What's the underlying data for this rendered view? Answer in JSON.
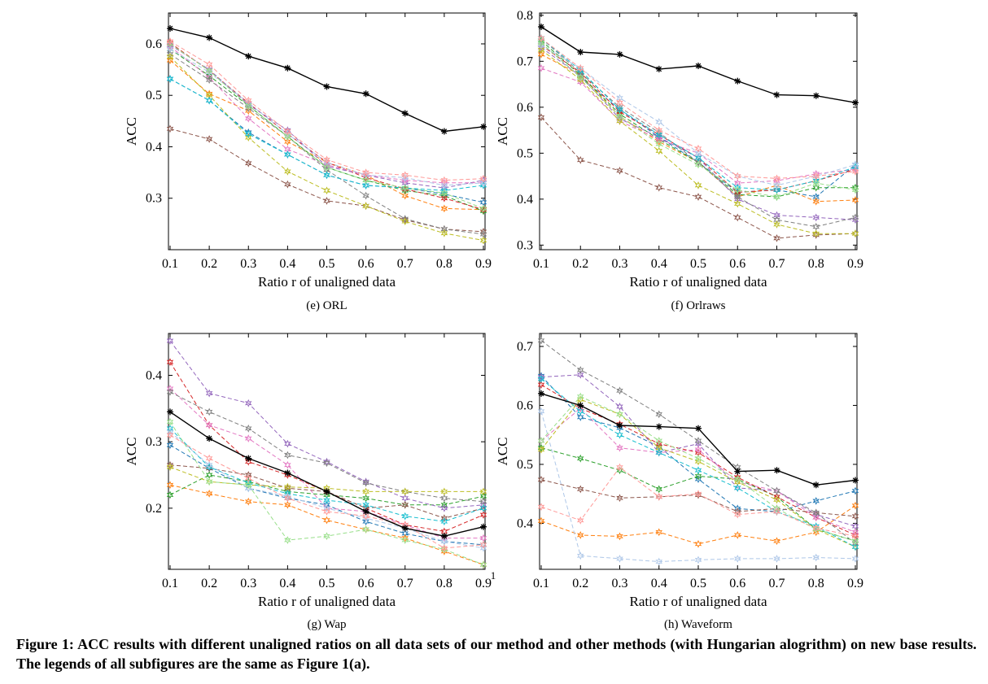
{
  "caption": "Figure 1: ACC results with different unaligned ratios on all data sets of our method and other methods (with Hungarian alogrithm) on new base results. The legends of all subfigures are the same as Figure 1(a).",
  "series_colors": [
    "#000000",
    "#1f77b4",
    "#ff7f0e",
    "#2ca02c",
    "#d62728",
    "#9467bd",
    "#8c564b",
    "#e377c2",
    "#7f7f7f",
    "#bcbd22",
    "#17becf",
    "#aec7e8",
    "#98df8a",
    "#ff9896"
  ],
  "chart_data": [
    {
      "type": "line",
      "subcaption": "(e)  ORL",
      "xlabel": "Ratio r of unaligned data",
      "ylabel": "ACC",
      "x": [
        0.1,
        0.2,
        0.3,
        0.4,
        0.5,
        0.6,
        0.7,
        0.8,
        0.9
      ],
      "xticks": [
        "0.1",
        "0.2",
        "0.3",
        "0.4",
        "0.5",
        "0.6",
        "0.7",
        "0.8",
        "0.9"
      ],
      "ylim": [
        0.2,
        0.66
      ],
      "yticks": [
        0.3,
        0.4,
        0.5,
        0.6
      ],
      "ytick_labels": [
        "0.3",
        "0.4",
        "0.5",
        "0.6"
      ],
      "series": [
        {
          "values": [
            0.63,
            0.612,
            0.576,
            0.553,
            0.517,
            0.503,
            0.465,
            0.43,
            0.439
          ]
        },
        {
          "values": [
            0.532,
            0.49,
            0.428,
            0.385,
            0.345,
            0.325,
            0.32,
            0.308,
            0.292
          ]
        },
        {
          "values": [
            0.568,
            0.503,
            0.47,
            0.41,
            0.37,
            0.345,
            0.305,
            0.28,
            0.278
          ]
        },
        {
          "values": [
            0.59,
            0.538,
            0.48,
            0.42,
            0.36,
            0.335,
            0.315,
            0.305,
            0.275
          ]
        },
        {
          "values": [
            0.602,
            0.548,
            0.485,
            0.425,
            0.37,
            0.34,
            0.318,
            0.3,
            0.278
          ]
        },
        {
          "values": [
            0.598,
            0.55,
            0.482,
            0.432,
            0.362,
            0.345,
            0.33,
            0.32,
            0.335
          ]
        },
        {
          "values": [
            0.435,
            0.415,
            0.368,
            0.327,
            0.295,
            0.285,
            0.258,
            0.24,
            0.235
          ]
        },
        {
          "values": [
            0.595,
            0.535,
            0.455,
            0.395,
            0.365,
            0.345,
            0.335,
            0.33,
            0.33
          ]
        },
        {
          "values": [
            0.58,
            0.53,
            0.475,
            0.42,
            0.355,
            0.305,
            0.26,
            0.24,
            0.23
          ]
        },
        {
          "values": [
            0.575,
            0.5,
            0.418,
            0.352,
            0.315,
            0.285,
            0.255,
            0.232,
            0.218
          ]
        },
        {
          "values": [
            0.532,
            0.49,
            0.425,
            0.385,
            0.345,
            0.325,
            0.32,
            0.315,
            0.325
          ]
        },
        {
          "values": [
            0.59,
            0.545,
            0.485,
            0.425,
            0.37,
            0.345,
            0.34,
            0.325,
            0.33
          ]
        },
        {
          "values": [
            0.6,
            0.548,
            0.48,
            0.42,
            0.36,
            0.335,
            0.32,
            0.31,
            0.28
          ]
        },
        {
          "values": [
            0.605,
            0.56,
            0.49,
            0.43,
            0.375,
            0.35,
            0.345,
            0.335,
            0.338
          ]
        }
      ]
    },
    {
      "type": "line",
      "subcaption": "(f)  Orlraws",
      "xlabel": "Ratio r of unaligned data",
      "ylabel": "ACC",
      "x": [
        0.1,
        0.2,
        0.3,
        0.4,
        0.5,
        0.6,
        0.7,
        0.8,
        0.9
      ],
      "xticks": [
        "0.1",
        "0.2",
        "0.3",
        "0.4",
        "0.5",
        "0.6",
        "0.7",
        "0.8",
        "0.9"
      ],
      "ylim": [
        0.29,
        0.805
      ],
      "yticks": [
        0.3,
        0.4,
        0.5,
        0.6,
        0.7,
        0.8
      ],
      "ytick_labels": [
        "0.3",
        "0.4",
        "0.5",
        "0.6",
        "0.7",
        "0.8"
      ],
      "series": [
        {
          "values": [
            0.775,
            0.72,
            0.715,
            0.683,
            0.69,
            0.657,
            0.627,
            0.625,
            0.61
          ]
        },
        {
          "values": [
            0.74,
            0.665,
            0.595,
            0.535,
            0.48,
            0.415,
            0.42,
            0.405,
            0.475
          ]
        },
        {
          "values": [
            0.715,
            0.67,
            0.58,
            0.525,
            0.48,
            0.405,
            0.43,
            0.395,
            0.398
          ]
        },
        {
          "values": [
            0.745,
            0.67,
            0.585,
            0.53,
            0.48,
            0.41,
            0.405,
            0.425,
            0.425
          ]
        },
        {
          "values": [
            0.735,
            0.675,
            0.59,
            0.54,
            0.49,
            0.415,
            0.42,
            0.44,
            0.465
          ]
        },
        {
          "values": [
            0.73,
            0.668,
            0.575,
            0.535,
            0.49,
            0.4,
            0.365,
            0.36,
            0.355
          ]
        },
        {
          "values": [
            0.578,
            0.485,
            0.462,
            0.425,
            0.405,
            0.36,
            0.315,
            0.322,
            0.325
          ]
        },
        {
          "values": [
            0.685,
            0.655,
            0.57,
            0.53,
            0.5,
            0.435,
            0.44,
            0.455,
            0.465
          ]
        },
        {
          "values": [
            0.75,
            0.675,
            0.6,
            0.545,
            0.48,
            0.405,
            0.355,
            0.34,
            0.36
          ]
        },
        {
          "values": [
            0.725,
            0.66,
            0.57,
            0.505,
            0.43,
            0.39,
            0.345,
            0.325,
            0.325
          ]
        },
        {
          "values": [
            0.75,
            0.68,
            0.595,
            0.54,
            0.49,
            0.425,
            0.42,
            0.44,
            0.47
          ]
        },
        {
          "values": [
            0.735,
            0.685,
            0.62,
            0.568,
            0.5,
            0.45,
            0.43,
            0.45,
            0.475
          ]
        },
        {
          "values": [
            0.74,
            0.665,
            0.58,
            0.52,
            0.475,
            0.42,
            0.405,
            0.435,
            0.42
          ]
        },
        {
          "values": [
            0.75,
            0.685,
            0.61,
            0.55,
            0.51,
            0.45,
            0.445,
            0.45,
            0.46
          ]
        }
      ]
    },
    {
      "type": "line",
      "subcaption": "(g)  Wap",
      "xlabel": "Ratio r of unaligned data",
      "ylabel": "ACC",
      "x": [
        0.1,
        0.2,
        0.3,
        0.4,
        0.5,
        0.6,
        0.7,
        0.8,
        0.9
      ],
      "xticks": [
        "0.1",
        "0.2",
        "0.3",
        "0.4",
        "0.5",
        "0.6",
        "0.7",
        "0.8",
        "0.9"
      ],
      "x_extra_label": "1",
      "ylim": [
        0.108,
        0.463
      ],
      "yticks": [
        0.2,
        0.3,
        0.4
      ],
      "ytick_labels": [
        "0.2",
        "0.3",
        "0.4"
      ],
      "series": [
        {
          "values": [
            0.345,
            0.305,
            0.275,
            0.253,
            0.225,
            0.195,
            0.17,
            0.158,
            0.172
          ]
        },
        {
          "values": [
            0.295,
            0.26,
            0.23,
            0.215,
            0.205,
            0.18,
            0.162,
            0.15,
            0.145
          ]
        },
        {
          "values": [
            0.235,
            0.222,
            0.21,
            0.205,
            0.182,
            0.168,
            0.155,
            0.135,
            0.115
          ]
        },
        {
          "values": [
            0.22,
            0.25,
            0.24,
            0.225,
            0.22,
            0.215,
            0.205,
            0.205,
            0.218
          ]
        },
        {
          "values": [
            0.42,
            0.325,
            0.27,
            0.25,
            0.225,
            0.2,
            0.175,
            0.165,
            0.19
          ]
        },
        {
          "values": [
            0.452,
            0.373,
            0.358,
            0.297,
            0.27,
            0.24,
            0.215,
            0.2,
            0.205
          ]
        },
        {
          "values": [
            0.265,
            0.26,
            0.25,
            0.23,
            0.225,
            0.2,
            0.205,
            0.185,
            0.2
          ]
        },
        {
          "values": [
            0.38,
            0.325,
            0.305,
            0.265,
            0.2,
            0.195,
            0.175,
            0.155,
            0.155
          ]
        },
        {
          "values": [
            0.375,
            0.345,
            0.32,
            0.28,
            0.268,
            0.238,
            0.225,
            0.215,
            0.21
          ]
        },
        {
          "values": [
            0.262,
            0.24,
            0.235,
            0.232,
            0.23,
            0.225,
            0.225,
            0.225,
            0.225
          ]
        },
        {
          "values": [
            0.32,
            0.262,
            0.238,
            0.222,
            0.212,
            0.205,
            0.188,
            0.18,
            0.2
          ]
        },
        {
          "values": [
            0.315,
            0.265,
            0.23,
            0.218,
            0.2,
            0.185,
            0.17,
            0.15,
            0.14
          ]
        },
        {
          "values": [
            0.33,
            0.24,
            0.235,
            0.152,
            0.158,
            0.168,
            0.152,
            0.138,
            0.115
          ]
        },
        {
          "values": [
            0.31,
            0.275,
            0.245,
            0.215,
            0.195,
            0.188,
            0.175,
            0.14,
            0.145
          ]
        }
      ]
    },
    {
      "type": "line",
      "subcaption": "(h)  Waveform",
      "xlabel": "Ratio r of unaligned data",
      "ylabel": "ACC",
      "x": [
        0.1,
        0.2,
        0.3,
        0.4,
        0.5,
        0.6,
        0.7,
        0.8,
        0.9
      ],
      "xticks": [
        "0.1",
        "0.2",
        "0.3",
        "0.4",
        "0.5",
        "0.6",
        "0.7",
        "0.8",
        "0.9"
      ],
      "ylim": [
        0.322,
        0.722
      ],
      "yticks": [
        0.4,
        0.5,
        0.6,
        0.7
      ],
      "ytick_labels": [
        "0.4",
        "0.5",
        "0.6",
        "0.7"
      ],
      "series": [
        {
          "values": [
            0.62,
            0.6,
            0.566,
            0.564,
            0.561,
            0.488,
            0.49,
            0.465,
            0.473
          ]
        },
        {
          "values": [
            0.65,
            0.58,
            0.562,
            0.53,
            0.475,
            0.425,
            0.42,
            0.438,
            0.455
          ]
        },
        {
          "values": [
            0.404,
            0.38,
            0.378,
            0.385,
            0.365,
            0.38,
            0.37,
            0.385,
            0.43
          ]
        },
        {
          "values": [
            0.528,
            0.51,
            0.49,
            0.458,
            0.48,
            0.475,
            0.445,
            0.39,
            0.37
          ]
        },
        {
          "values": [
            0.635,
            0.595,
            0.568,
            0.535,
            0.52,
            0.478,
            0.445,
            0.41,
            0.38
          ]
        },
        {
          "values": [
            0.648,
            0.652,
            0.598,
            0.52,
            0.535,
            0.46,
            0.455,
            0.415,
            0.395
          ]
        },
        {
          "values": [
            0.474,
            0.458,
            0.443,
            0.445,
            0.448,
            0.42,
            0.425,
            0.418,
            0.412
          ]
        },
        {
          "values": [
            0.54,
            0.595,
            0.528,
            0.52,
            0.525,
            0.47,
            0.455,
            0.41,
            0.385
          ]
        },
        {
          "values": [
            0.71,
            0.66,
            0.625,
            0.585,
            0.54,
            0.495,
            0.455,
            0.418,
            0.366
          ]
        },
        {
          "values": [
            0.525,
            0.61,
            0.585,
            0.528,
            0.505,
            0.47,
            0.44,
            0.39,
            0.36
          ]
        },
        {
          "values": [
            0.645,
            0.59,
            0.55,
            0.52,
            0.49,
            0.46,
            0.42,
            0.395,
            0.36
          ]
        },
        {
          "values": [
            0.59,
            0.345,
            0.34,
            0.335,
            0.338,
            0.34,
            0.34,
            0.342,
            0.34
          ]
        },
        {
          "values": [
            0.54,
            0.615,
            0.585,
            0.54,
            0.51,
            0.475,
            0.425,
            0.39,
            0.37
          ]
        },
        {
          "values": [
            0.428,
            0.405,
            0.495,
            0.445,
            0.45,
            0.415,
            0.42,
            0.392,
            0.378
          ]
        }
      ]
    }
  ]
}
